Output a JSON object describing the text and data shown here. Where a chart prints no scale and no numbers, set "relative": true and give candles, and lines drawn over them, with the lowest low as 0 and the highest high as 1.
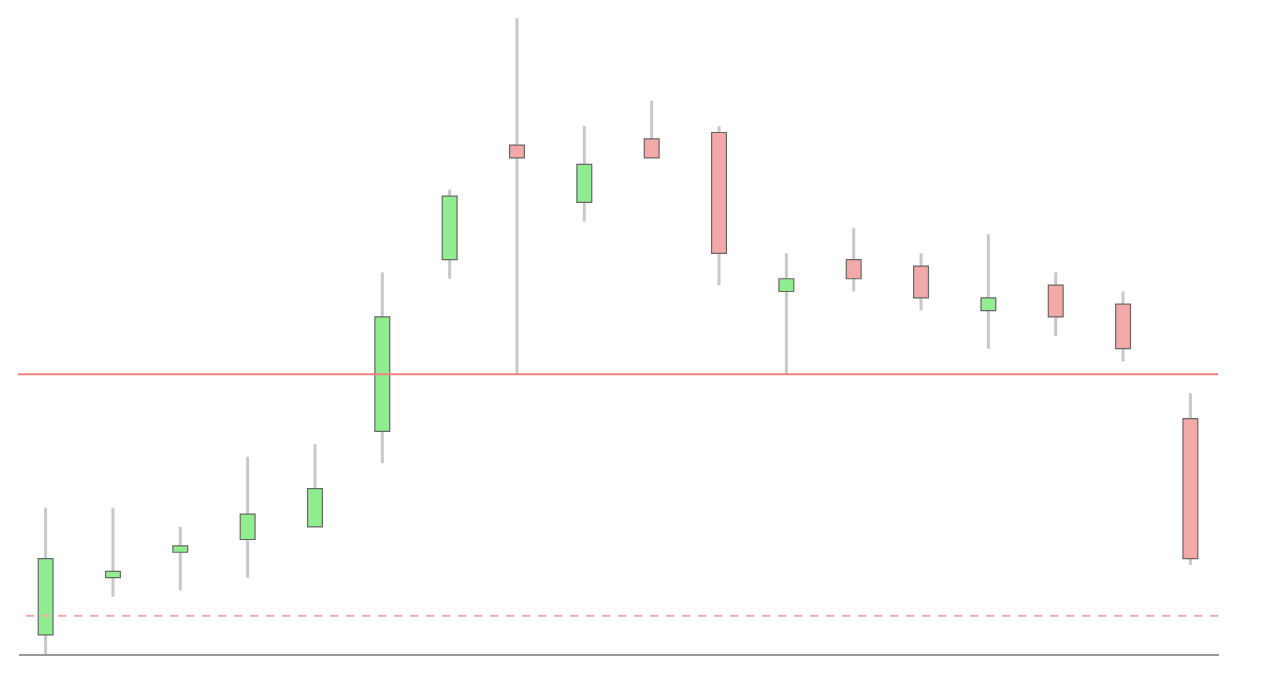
{
  "chart_data": {
    "type": "candlestick",
    "relative": true,
    "categories": [
      null,
      null,
      null,
      null,
      null,
      null,
      null,
      null,
      null,
      null,
      null,
      null,
      null,
      null,
      null,
      null,
      null,
      null
    ],
    "ohlc": [
      [
        0.03,
        0.23,
        0,
        0.15
      ],
      [
        0.12,
        0.23,
        0.09,
        0.13
      ],
      [
        0.16,
        0.2,
        0.1,
        0.17
      ],
      [
        0.18,
        0.31,
        0.12,
        0.22
      ],
      [
        0.2,
        0.33,
        0.2,
        0.26
      ],
      [
        0.35,
        0.6,
        0.3,
        0.53
      ],
      [
        0.62,
        0.73,
        0.59,
        0.72
      ],
      [
        0.8,
        1,
        0.44,
        0.78
      ],
      [
        0.71,
        0.83,
        0.68,
        0.77
      ],
      [
        0.81,
        0.87,
        0.78,
        0.78
      ],
      [
        0.82,
        0.83,
        0.58,
        0.63
      ],
      [
        0.57,
        0.63,
        0.44,
        0.59
      ],
      [
        0.62,
        0.67,
        0.57,
        0.59
      ],
      [
        0.61,
        0.63,
        0.54,
        0.56
      ],
      [
        0.54,
        0.66,
        0.48,
        0.56
      ],
      [
        0.58,
        0.6,
        0.5,
        0.53
      ],
      [
        0.55,
        0.57,
        0.46,
        0.48
      ],
      [
        0.37,
        0.41,
        0.14,
        0.15
      ]
    ],
    "colors": [
      "#90ee90",
      "#90ee90",
      "#90ee90",
      "#90ee90",
      "#90ee90",
      "#90ee90",
      "#90ee90",
      "#f4a9a9",
      "#90ee90",
      "#f4a9a9",
      "#f4a9a9",
      "#90ee90",
      "#f4a9a9",
      "#f4a9a9",
      "#90ee90",
      "#f4a9a9",
      "#f4a9a9",
      "#f4a9a9"
    ],
    "ref_lines": [
      {
        "axis": "y",
        "value": 0.44,
        "color": "#f08080",
        "line_style": "solid"
      },
      {
        "axis": "y",
        "value": 0.06,
        "color": "#f4a9a9",
        "line_style": "dashed"
      }
    ]
  }
}
